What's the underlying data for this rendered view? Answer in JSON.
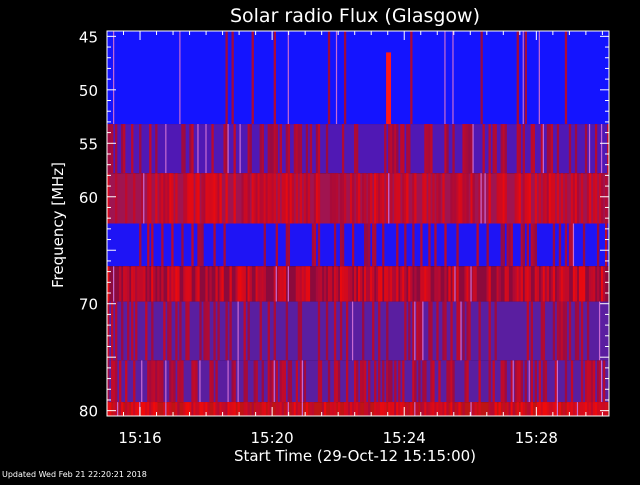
{
  "chart_data": {
    "type": "heatmap",
    "title": "Solar radio Flux (Glasgow)",
    "xlabel": "Start Time (29-Oct-12 15:15:00)",
    "ylabel": "Frequency [MHz]",
    "x_unit": "minutes after 15:15:00",
    "xlim": [
      0,
      15.2
    ],
    "ylim": [
      44.5,
      80.5
    ],
    "y_reversed": true,
    "x_ticks": [
      {
        "value": 1,
        "label": "15:16"
      },
      {
        "value": 5,
        "label": "15:20"
      },
      {
        "value": 9,
        "label": "15:24"
      },
      {
        "value": 13,
        "label": "15:28"
      }
    ],
    "y_ticks": [
      {
        "value": 45,
        "label": "45"
      },
      {
        "value": 50,
        "label": "50"
      },
      {
        "value": 55,
        "label": "55"
      },
      {
        "value": 60,
        "label": "60"
      },
      {
        "value": 70,
        "label": "70"
      },
      {
        "value": 80,
        "label": "80"
      }
    ],
    "bands": [
      {
        "from": 44.5,
        "to": 53.2,
        "base_color": "#1414ff",
        "red_fraction": 0.07,
        "intensity": 0.5
      },
      {
        "from": 53.2,
        "to": 57.8,
        "base_color": "#5018b4",
        "red_fraction": 0.35,
        "intensity": 0.55
      },
      {
        "from": 57.8,
        "to": 62.5,
        "base_color": "#a01450",
        "red_fraction": 0.6,
        "intensity": 0.85
      },
      {
        "from": 62.5,
        "to": 66.5,
        "base_color": "#1e14f5",
        "red_fraction": 0.2,
        "intensity": 0.5
      },
      {
        "from": 66.5,
        "to": 69.8,
        "base_color": "#8c0a3c",
        "red_fraction": 0.65,
        "intensity": 0.85
      },
      {
        "from": 69.8,
        "to": 75.3,
        "base_color": "#5a1ea0",
        "red_fraction": 0.3,
        "intensity": 0.55
      },
      {
        "from": 75.3,
        "to": 79.2,
        "base_color": "#5a1ea0",
        "red_fraction": 0.45,
        "intensity": 0.6
      },
      {
        "from": 79.2,
        "to": 80.5,
        "base_color": "#be1414",
        "red_fraction": 0.75,
        "intensity": 0.9
      }
    ],
    "burst": {
      "time_from": 8.45,
      "time_to": 8.6,
      "freq_from": 46.5,
      "freq_to": 53.2,
      "color": "#ff1a1a"
    },
    "colors": {
      "high": "#ff0000",
      "low": "#0000ff",
      "axis": "#ffffff",
      "background": "#000000"
    }
  },
  "footer": {
    "updated": "Updated Wed Feb 21 22:20:21 2018"
  }
}
